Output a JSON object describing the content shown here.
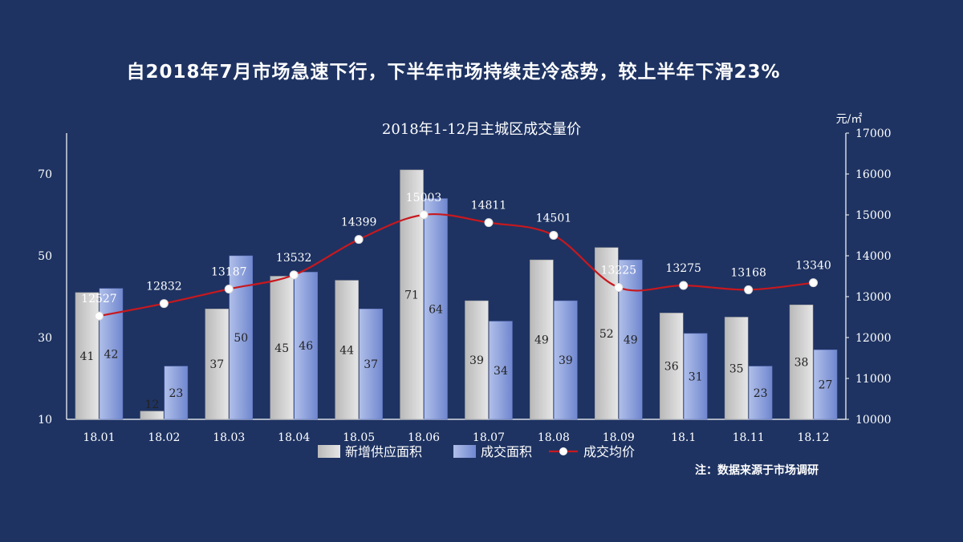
{
  "headline": "自2018年7月市场急速下行，下半年市场持续走冷态势，较上半年下滑23%",
  "note": "注：数据来源于市场调研",
  "colors": {
    "background": "#1e3362",
    "supply_bar": "#d4d4d4",
    "deal_bar": "#8ea2dc",
    "price_line": "#c8181e",
    "text": "#ffffff"
  },
  "chart_data": {
    "type": "bar",
    "title": "2018年1-12月主城区成交量价",
    "categories": [
      "18.01",
      "18.02",
      "18.03",
      "18.04",
      "18.05",
      "18.06",
      "18.07",
      "18.08",
      "18.09",
      "18.1",
      "18.11",
      "18.12"
    ],
    "series": [
      {
        "name": "新增供应面积",
        "type": "bar",
        "axis": "left",
        "values": [
          41,
          12,
          37,
          45,
          44,
          71,
          39,
          49,
          52,
          36,
          35,
          38
        ]
      },
      {
        "name": "成交面积",
        "type": "bar",
        "axis": "left",
        "values": [
          42,
          23,
          50,
          46,
          37,
          64,
          34,
          39,
          49,
          31,
          23,
          27
        ]
      },
      {
        "name": "成交均价",
        "type": "line",
        "axis": "right",
        "values": [
          12527,
          12832,
          13187,
          13532,
          14399,
          15003,
          14811,
          14501,
          13225,
          13275,
          13168,
          13340
        ]
      }
    ],
    "y_left": {
      "ylim": [
        10,
        80
      ],
      "ticks": [
        10,
        30,
        50,
        70
      ]
    },
    "y_right": {
      "unit": "元/㎡",
      "ylim": [
        10000,
        17000
      ],
      "ticks": [
        10000,
        11000,
        12000,
        13000,
        14000,
        15000,
        16000,
        17000
      ]
    },
    "legend_position": "bottom",
    "grid": false
  }
}
